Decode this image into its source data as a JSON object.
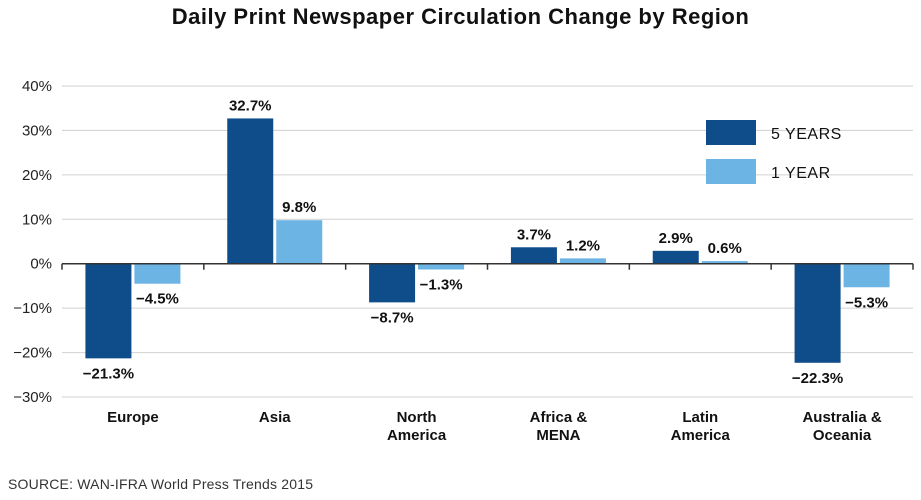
{
  "chart_data": {
    "type": "bar",
    "title": "Daily Print Newspaper Circulation Change by Region",
    "xlabel": "",
    "ylabel": "",
    "ylim": [
      -30,
      40
    ],
    "yticks": [
      -30,
      -20,
      -10,
      0,
      10,
      20,
      30,
      40
    ],
    "ytick_labels": [
      "−30%",
      "−20%",
      "−10%",
      "0%",
      "10%",
      "20%",
      "30%",
      "40%"
    ],
    "grid": true,
    "legend": "top-right",
    "categories": [
      [
        "Europe"
      ],
      [
        "Asia"
      ],
      [
        "North",
        "America"
      ],
      [
        "Africa &",
        "MENA"
      ],
      [
        "Latin",
        "America"
      ],
      [
        "Australia &",
        "Oceania"
      ]
    ],
    "series": [
      {
        "name": "5 YEARS",
        "color": "#0f4c8a",
        "values": [
          -21.3,
          32.7,
          -8.7,
          3.7,
          2.9,
          -22.3
        ],
        "labels": [
          "−21.3%",
          "32.7%",
          "−8.7%",
          "3.7%",
          "2.9%",
          "−22.3%"
        ]
      },
      {
        "name": "1 YEAR",
        "color": "#6cb4e4",
        "values": [
          -4.5,
          9.8,
          -1.3,
          1.2,
          0.6,
          -5.3
        ],
        "labels": [
          "−4.5%",
          "9.8%",
          "−1.3%",
          "1.2%",
          "0.6%",
          "−5.3%"
        ]
      }
    ]
  },
  "source": {
    "label": "SOURCE:",
    "text": " WAN-IFRA World Press Trends 2015"
  }
}
